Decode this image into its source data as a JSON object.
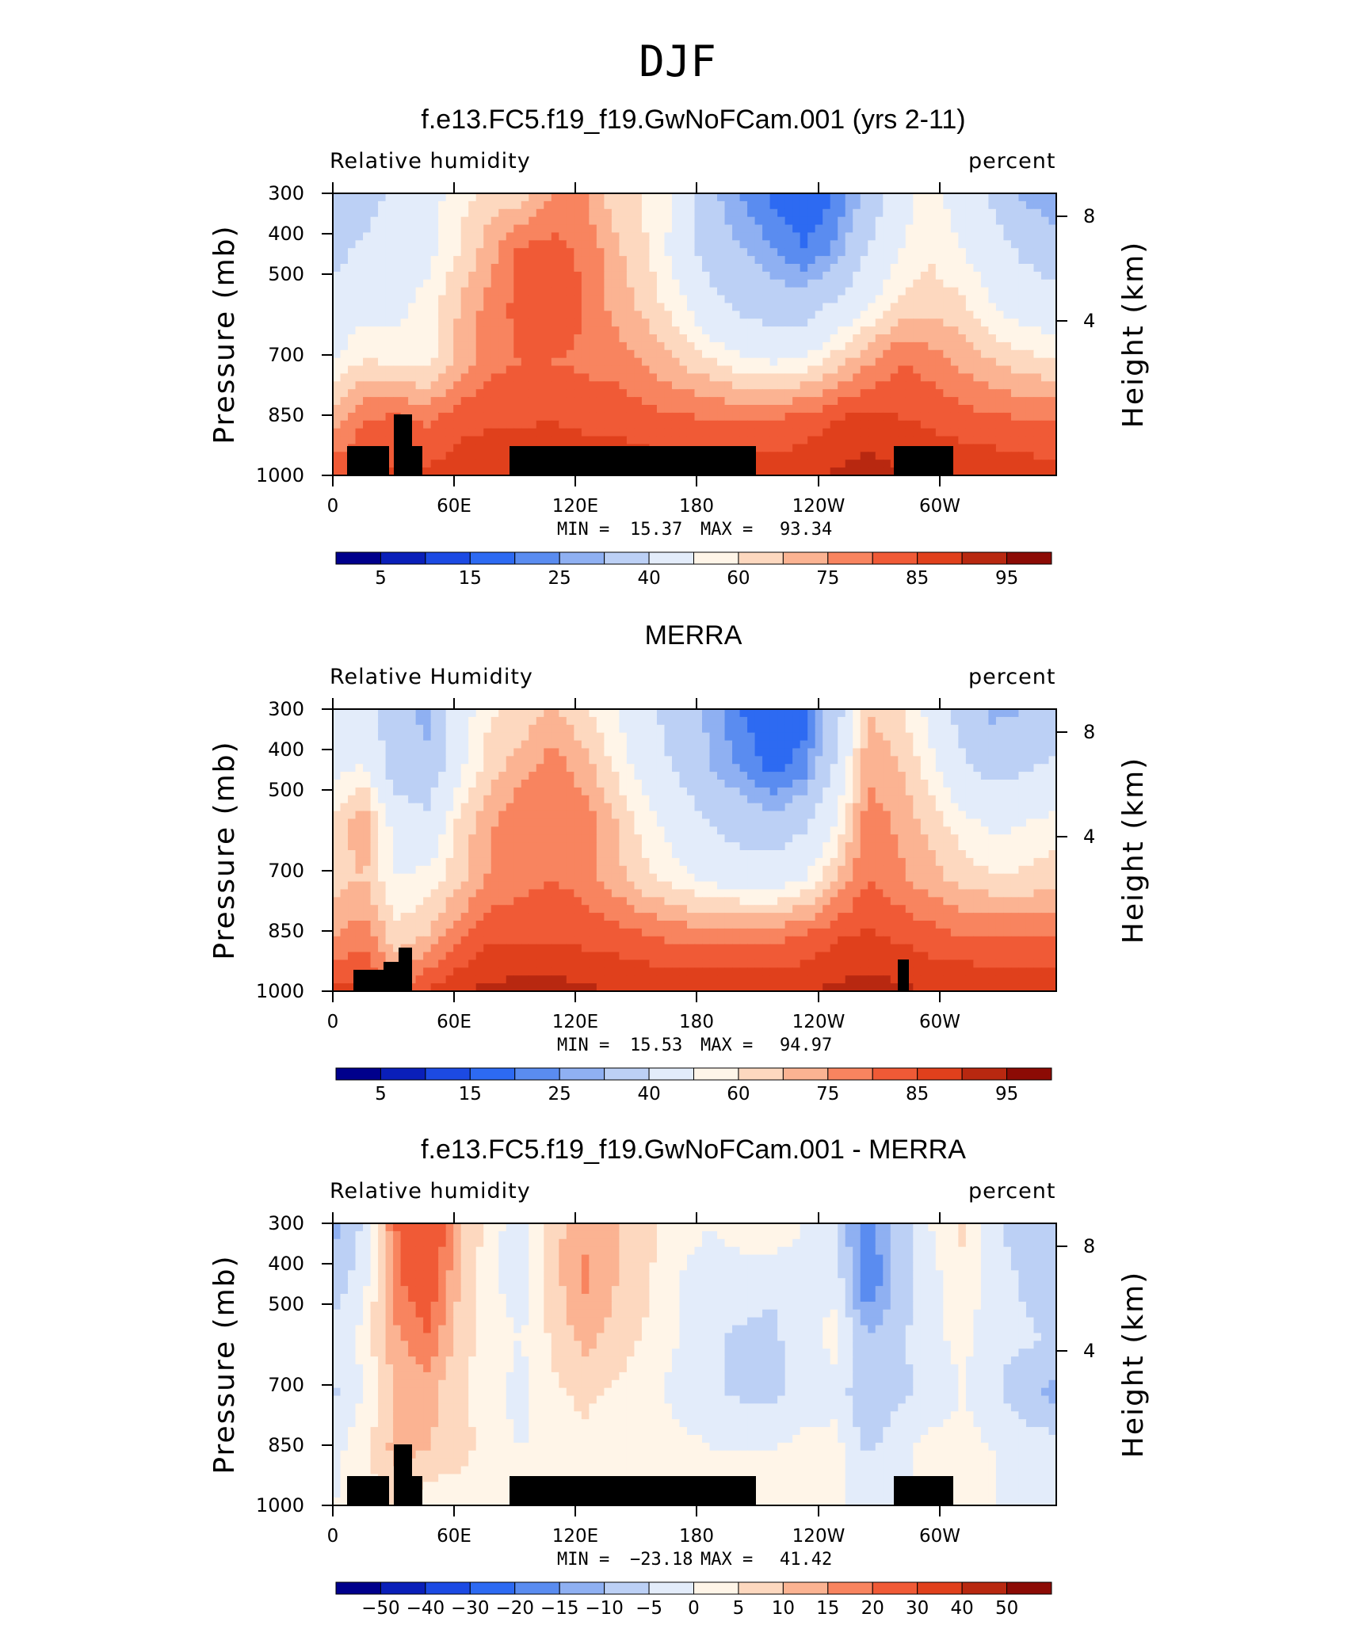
{
  "figure_title": "DJF",
  "chart_data": [
    {
      "type": "heatmap",
      "title": "f.e13.FC5.f19_f19.GwNoFCam.001 (yrs 2-11)",
      "left_label": "Relative humidity",
      "right_label": "percent",
      "ylabel": "Pressure (mb)",
      "y2label": "Height (km)",
      "x_ticks": [
        "0",
        "60E",
        "120E",
        "180",
        "120W",
        "60W"
      ],
      "y_ticks": [
        "300",
        "400",
        "500",
        "700",
        "850",
        "1000"
      ],
      "y2_ticks": [
        "8",
        "4"
      ],
      "stats": {
        "min_label": "MIN =",
        "min": "15.37",
        "max_label": "MAX =",
        "max": "93.34"
      },
      "colorbar": {
        "labels": [
          "5",
          "15",
          "25",
          "40",
          "60",
          "75",
          "85",
          "95"
        ],
        "colors": [
          "#00008c",
          "#0a1fb9",
          "#1c4ae3",
          "#2d6af2",
          "#5a8cf0",
          "#8fb0f2",
          "#bcd0f5",
          "#e3ecfa",
          "#fff5e8",
          "#fdd8bf",
          "#fbb392",
          "#f8845f",
          "#f05a36",
          "#e0401c",
          "#b82810",
          "#8c0b05"
        ]
      },
      "field": [
        [
          42,
          45,
          53,
          57,
          63,
          67,
          67,
          75,
          75,
          67,
          64,
          59,
          42,
          35,
          28,
          25,
          30,
          43,
          55,
          64,
          55,
          48,
          38,
          35
        ],
        [
          47,
          52,
          56,
          58,
          65,
          73,
          81,
          82,
          79,
          71,
          65,
          57,
          45,
          40,
          35,
          30,
          36,
          50,
          60,
          64,
          60,
          55,
          48,
          44
        ],
        [
          53,
          57,
          58,
          62,
          70,
          77,
          82,
          83,
          80,
          73,
          68,
          62,
          53,
          48,
          45,
          45,
          52,
          60,
          66,
          68,
          66,
          60,
          56,
          54
        ],
        [
          60,
          66,
          64,
          63,
          72,
          79,
          80,
          80,
          79,
          78,
          74,
          70,
          66,
          62,
          60,
          62,
          68,
          74,
          80,
          78,
          74,
          70,
          67,
          66
        ],
        [
          72,
          80,
          81,
          79,
          83,
          84,
          84,
          85,
          83,
          83,
          82,
          81,
          80,
          80,
          80,
          82,
          85,
          87,
          85,
          84,
          82,
          81,
          80,
          80
        ],
        [
          84,
          86,
          86,
          86,
          88,
          89,
          90,
          91,
          90,
          89,
          88,
          87,
          87,
          88,
          88,
          89,
          91,
          92,
          91,
          90,
          89,
          89,
          88,
          87
        ]
      ]
    },
    {
      "type": "heatmap",
      "title": "MERRA",
      "left_label": "Relative Humidity",
      "right_label": "percent",
      "ylabel": "Pressure (mb)",
      "y2label": "Height (km)",
      "x_ticks": [
        "0",
        "60E",
        "120E",
        "180",
        "120W",
        "60W"
      ],
      "y_ticks": [
        "300",
        "400",
        "500",
        "700",
        "850",
        "1000"
      ],
      "y2_ticks": [
        "8",
        "4"
      ],
      "stats": {
        "min_label": "MIN =",
        "min": "15.53",
        "max_label": "MAX =",
        "max": "94.97"
      },
      "colorbar": {
        "labels": [
          "5",
          "15",
          "25",
          "40",
          "60",
          "75",
          "85",
          "95"
        ],
        "colors": [
          "#00008c",
          "#0a1fb9",
          "#1c4ae3",
          "#2d6af2",
          "#5a8cf0",
          "#8fb0f2",
          "#bcd0f5",
          "#e3ecfa",
          "#fff5e8",
          "#fdd8bf",
          "#fbb392",
          "#f8845f",
          "#f05a36",
          "#e0401c",
          "#b82810",
          "#8c0b05"
        ]
      },
      "field": [
        [
          52,
          56,
          42,
          38,
          56,
          64,
          67,
          70,
          66,
          60,
          52,
          45,
          38,
          30,
          25,
          28,
          45,
          70,
          66,
          58,
          46,
          38,
          40,
          45
        ],
        [
          58,
          60,
          44,
          42,
          58,
          68,
          72,
          78,
          72,
          64,
          56,
          48,
          40,
          34,
          28,
          32,
          52,
          74,
          70,
          62,
          52,
          46,
          48,
          52
        ],
        [
          66,
          74,
          56,
          52,
          66,
          74,
          80,
          80,
          78,
          70,
          62,
          56,
          50,
          45,
          42,
          48,
          60,
          78,
          74,
          68,
          62,
          58,
          60,
          62
        ],
        [
          68,
          70,
          60,
          62,
          68,
          76,
          78,
          80,
          78,
          72,
          66,
          62,
          58,
          56,
          56,
          60,
          70,
          80,
          76,
          72,
          68,
          66,
          66,
          68
        ],
        [
          74,
          78,
          66,
          70,
          78,
          84,
          84,
          84,
          83,
          82,
          80,
          78,
          78,
          78,
          78,
          80,
          84,
          86,
          84,
          82,
          80,
          80,
          80,
          80
        ],
        [
          86,
          88,
          78,
          86,
          90,
          91,
          92,
          92,
          91,
          90,
          90,
          89,
          89,
          89,
          89,
          90,
          91,
          92,
          91,
          90,
          90,
          89,
          89,
          88
        ]
      ]
    },
    {
      "type": "heatmap",
      "title": "f.e13.FC5.f19_f19.GwNoFCam.001 - MERRA",
      "left_label": "Relative humidity",
      "right_label": "percent",
      "ylabel": "Pressure (mb)",
      "y2label": "Height (km)",
      "x_ticks": [
        "0",
        "60E",
        "120E",
        "180",
        "120W",
        "60W"
      ],
      "y_ticks": [
        "300",
        "400",
        "500",
        "700",
        "850",
        "1000"
      ],
      "y2_ticks": [
        "8",
        "4"
      ],
      "stats": {
        "min_label": "MIN =",
        "min": "−23.18",
        "max_label": "MAX =",
        "max": "41.42"
      },
      "colorbar": {
        "labels": [
          "−50",
          "−40",
          "−30",
          "−20",
          "−15",
          "−10",
          "−5",
          "0",
          "5",
          "10",
          "15",
          "20",
          "30",
          "40",
          "50"
        ],
        "colors": [
          "#00008c",
          "#0a1fb9",
          "#1c4ae3",
          "#2d6af2",
          "#5a8cf0",
          "#8fb0f2",
          "#bcd0f5",
          "#e3ecfa",
          "#fff5e8",
          "#fdd8bf",
          "#fbb392",
          "#f8845f",
          "#f05a36",
          "#e0401c",
          "#b82810",
          "#8c0b05"
        ]
      },
      "field": [
        [
          -12,
          -4,
          20,
          30,
          12,
          2,
          -3,
          8,
          14,
          10,
          6,
          2,
          0,
          2,
          4,
          0,
          -5,
          -18,
          -8,
          0,
          6,
          -4,
          -8,
          -10
        ],
        [
          -8,
          -2,
          18,
          26,
          10,
          2,
          -4,
          8,
          16,
          10,
          6,
          0,
          -2,
          -2,
          -4,
          -2,
          -2,
          -20,
          -8,
          -2,
          4,
          -2,
          -6,
          -8
        ],
        [
          -4,
          2,
          14,
          20,
          8,
          2,
          0,
          6,
          12,
          8,
          4,
          0,
          -4,
          -6,
          -6,
          -2,
          2,
          -10,
          -6,
          -2,
          2,
          -4,
          -4,
          -6
        ],
        [
          -6,
          0,
          10,
          12,
          6,
          2,
          -2,
          4,
          6,
          4,
          2,
          -2,
          -4,
          -6,
          -6,
          -4,
          -2,
          -10,
          -6,
          -4,
          0,
          -4,
          -8,
          -12
        ],
        [
          -2,
          4,
          12,
          10,
          8,
          2,
          0,
          2,
          4,
          2,
          2,
          2,
          0,
          0,
          0,
          2,
          2,
          -6,
          -2,
          2,
          2,
          0,
          -2,
          -2
        ],
        [
          0,
          2,
          6,
          2,
          0,
          0,
          0,
          2,
          2,
          0,
          0,
          0,
          0,
          0,
          0,
          0,
          0,
          0,
          0,
          0,
          0,
          0,
          0,
          0
        ]
      ]
    }
  ]
}
